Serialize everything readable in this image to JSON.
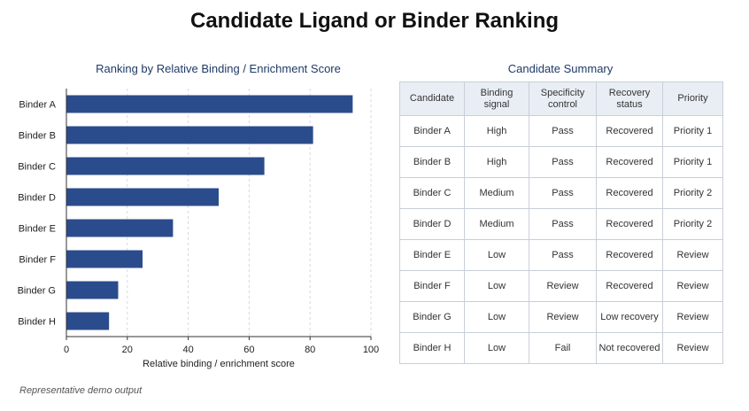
{
  "title": "Candidate Ligand or Binder Ranking",
  "footer": "Representative demo output",
  "chart_data": {
    "type": "bar",
    "orientation": "horizontal",
    "title": "Ranking by Relative Binding / Enrichment Score",
    "xlabel": "Relative binding / enrichment score",
    "ylabel": "",
    "categories": [
      "Binder A",
      "Binder B",
      "Binder C",
      "Binder D",
      "Binder E",
      "Binder F",
      "Binder G",
      "Binder H"
    ],
    "values": [
      94,
      81,
      65,
      50,
      35,
      25,
      17,
      14
    ],
    "xlim": [
      0,
      100
    ],
    "xticks": [
      0,
      20,
      40,
      60,
      80,
      100
    ],
    "grid": "vertical dashed",
    "bar_color": "#2b4c8c"
  },
  "table": {
    "title": "Candidate Summary",
    "columns": [
      [
        "Candidate"
      ],
      [
        "Binding",
        "signal"
      ],
      [
        "Specificity",
        "control"
      ],
      [
        "Recovery",
        "status"
      ],
      [
        "Priority"
      ]
    ],
    "rows": [
      [
        "Binder A",
        "High",
        "Pass",
        "Recovered",
        "Priority 1"
      ],
      [
        "Binder B",
        "High",
        "Pass",
        "Recovered",
        "Priority 1"
      ],
      [
        "Binder C",
        "Medium",
        "Pass",
        "Recovered",
        "Priority 2"
      ],
      [
        "Binder D",
        "Medium",
        "Pass",
        "Recovered",
        "Priority 2"
      ],
      [
        "Binder E",
        "Low",
        "Pass",
        "Recovered",
        "Review"
      ],
      [
        "Binder F",
        "Low",
        "Review",
        "Recovered",
        "Review"
      ],
      [
        "Binder G",
        "Low",
        "Review",
        "Low recovery",
        "Review"
      ],
      [
        "Binder H",
        "Low",
        "Fail",
        "Not recovered",
        "Review"
      ]
    ]
  }
}
